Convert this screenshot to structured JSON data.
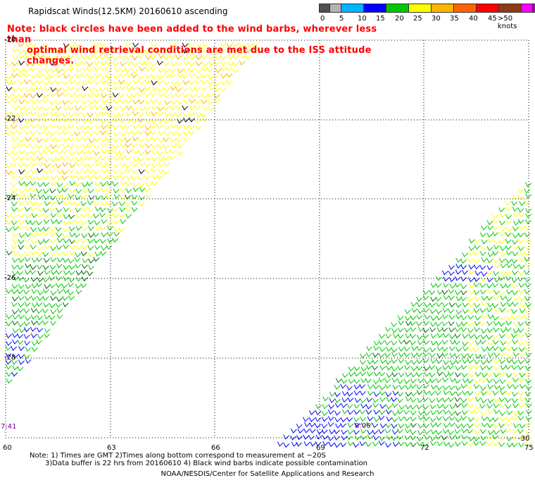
{
  "header": {
    "title": "Rapidscat Winds(12.5KM) 20160610 ascending",
    "note_line1": "Note: black circles have been added to the wind barbs, wherever less than",
    "note_line2": "optimal wind retrieval conditions are met due to the ISS attitude changes."
  },
  "colorbar": {
    "colors": [
      "#505050",
      "#b4b4b4",
      "#00b4ff",
      "#0000ff",
      "#00c800",
      "#ffff00",
      "#ffb400",
      "#ff6400",
      "#ff0000",
      "#8c3c14",
      "#ff00ff",
      "#b400b4",
      "#64008c"
    ],
    "labels": [
      "0",
      "5",
      "10",
      "15",
      "20",
      "25",
      "30",
      "35",
      "40",
      "45",
      ">50 knots"
    ]
  },
  "axes": {
    "lat_labels": [
      "-20",
      "-22",
      "-24",
      "-26",
      "-28",
      "-30"
    ],
    "lon_labels": [
      "60",
      "63",
      "66",
      "69",
      "72",
      "75"
    ]
  },
  "times": [
    "7:41",
    "8:06"
  ],
  "footer": {
    "note1": "Note: 1) Times are GMT 2)Times along bottom correspond to measurement at ~20S",
    "note2": "3)Data buffer is 22 hrs from 20160610 4) Black wind barbs indicate possible contamination",
    "credit": "NOAA/NESDIS/Center for Satellite Applications and Research"
  }
}
